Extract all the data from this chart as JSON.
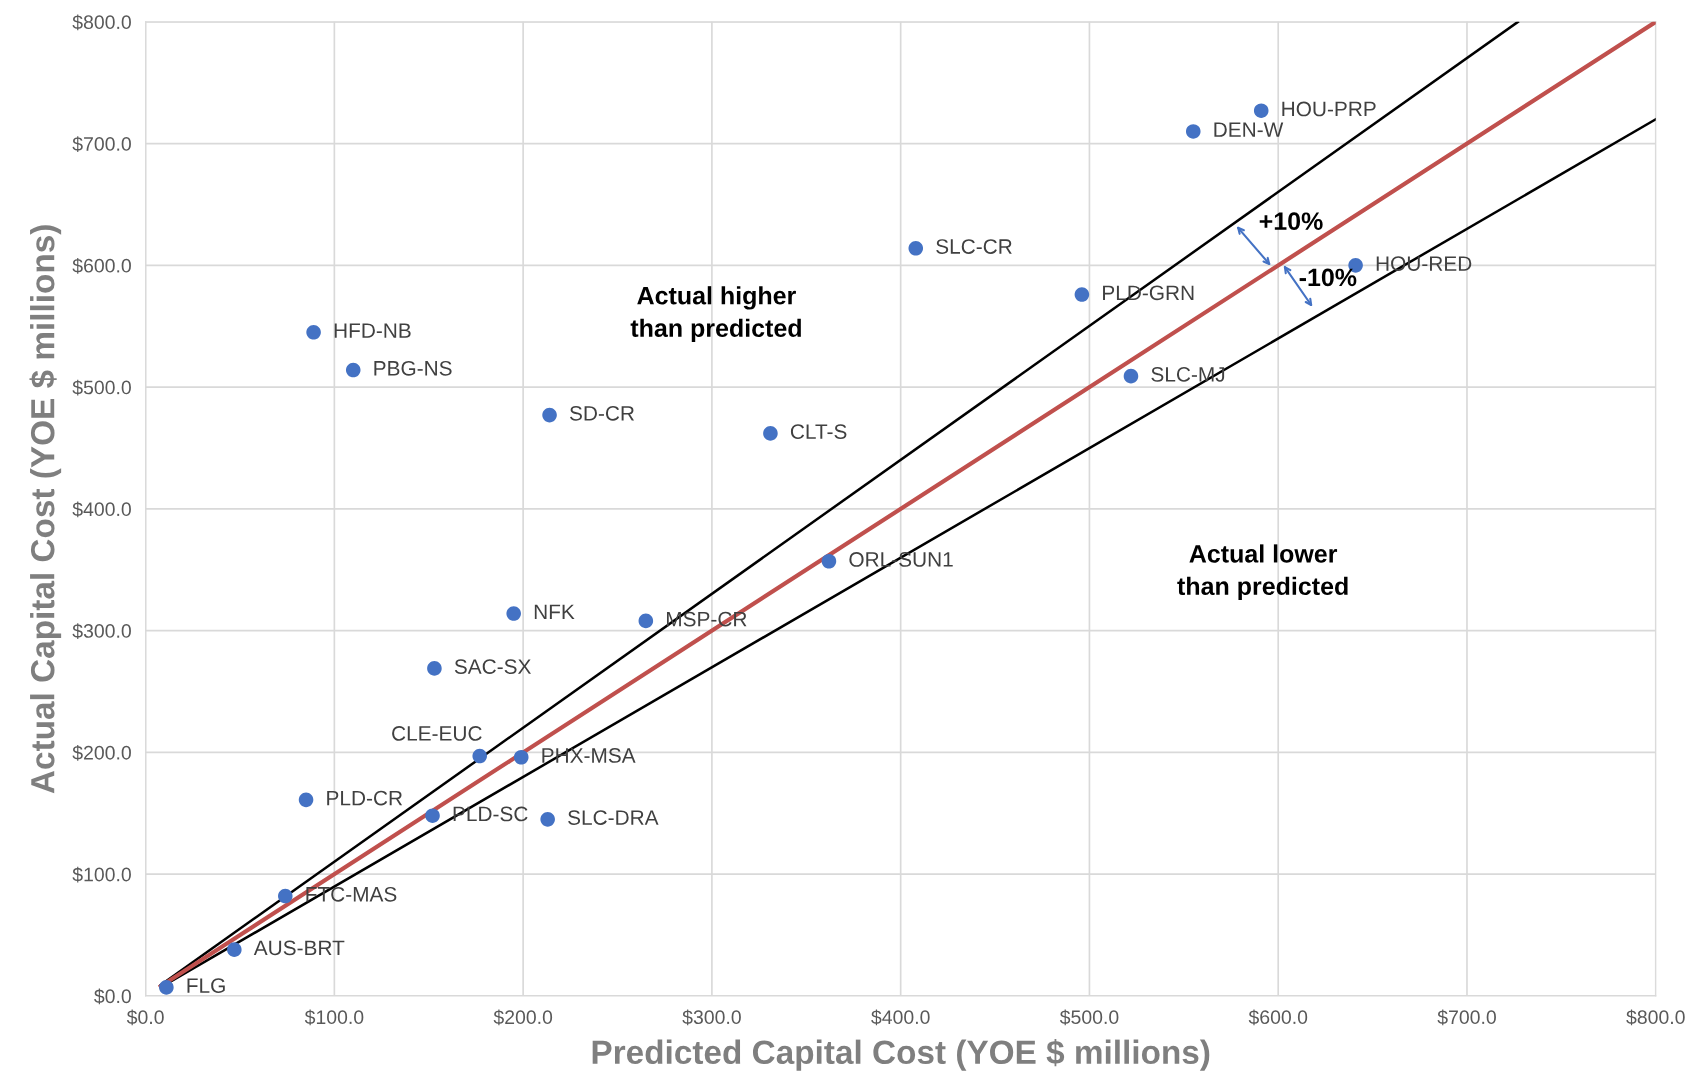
{
  "chart_data": {
    "type": "scatter",
    "xlabel": "Predicted Capital Cost (YOE $ millions)",
    "ylabel": "Actual Capital Cost (YOE $ millions)",
    "xlim": [
      0,
      800
    ],
    "ylim": [
      0,
      800
    ],
    "xticks": [
      {
        "value": 0,
        "label": "$0.0"
      },
      {
        "value": 100,
        "label": "$100.0"
      },
      {
        "value": 200,
        "label": "$200.0"
      },
      {
        "value": 300,
        "label": "$300.0"
      },
      {
        "value": 400,
        "label": "$400.0"
      },
      {
        "value": 500,
        "label": "$500.0"
      },
      {
        "value": 600,
        "label": "$600.0"
      },
      {
        "value": 700,
        "label": "$700.0"
      },
      {
        "value": 800,
        "label": "$800.0"
      }
    ],
    "yticks": [
      {
        "value": 0,
        "label": "$0.0"
      },
      {
        "value": 100,
        "label": "$100.0"
      },
      {
        "value": 200,
        "label": "$200.0"
      },
      {
        "value": 300,
        "label": "$300.0"
      },
      {
        "value": 400,
        "label": "$400.0"
      },
      {
        "value": 500,
        "label": "$500.0"
      },
      {
        "value": 600,
        "label": "$600.0"
      },
      {
        "value": 700,
        "label": "$700.0"
      },
      {
        "value": 800,
        "label": "$800.0"
      }
    ],
    "grid": true,
    "marker": "circle",
    "series": [
      {
        "type": "line",
        "marker": "none",
        "color": "#000000",
        "x": [
          8,
          727
        ],
        "values": [
          9,
          800
        ]
      },
      {
        "type": "line",
        "marker": "none",
        "color": "#000000",
        "x": [
          8,
          800
        ],
        "values": [
          7,
          720
        ]
      },
      {
        "type": "line",
        "marker": "none",
        "color": "#c0504d",
        "x": [
          8,
          800
        ],
        "values": [
          8,
          800
        ]
      },
      {
        "color": "#4472c4",
        "x": [
          11,
          47,
          74,
          85,
          152,
          213,
          177,
          199,
          153,
          195,
          265,
          362,
          331,
          214,
          110,
          89,
          408,
          496,
          522,
          641,
          555,
          591
        ],
        "values": [
          7,
          38,
          82,
          161,
          148,
          145,
          197,
          196,
          269,
          314,
          308,
          357,
          462,
          477,
          514,
          545,
          614,
          576,
          509,
          600,
          710,
          727
        ]
      }
    ],
    "annotations": [
      {
        "text": "FLG",
        "x": 11,
        "y": 7
      },
      {
        "text": "AUS-BRT",
        "x": 47,
        "y": 38
      },
      {
        "text": "FTC-MAS",
        "x": 74,
        "y": 82
      },
      {
        "text": "PLD-CR",
        "x": 85,
        "y": 161
      },
      {
        "text": "PLD-SC",
        "x": 152,
        "y": 148
      },
      {
        "text": "SLC-DRA",
        "x": 213,
        "y": 145
      },
      {
        "text": "CLE-EUC",
        "x": 177,
        "y": 197
      },
      {
        "text": "PHX-MSA",
        "x": 199,
        "y": 196
      },
      {
        "text": "SAC-SX",
        "x": 153,
        "y": 269
      },
      {
        "text": "NFK",
        "x": 195,
        "y": 314
      },
      {
        "text": "MSP-CR",
        "x": 265,
        "y": 308
      },
      {
        "text": "ORL-SUN1",
        "x": 362,
        "y": 357
      },
      {
        "text": "CLT-S",
        "x": 331,
        "y": 462
      },
      {
        "text": "SD-CR",
        "x": 214,
        "y": 477
      },
      {
        "text": "PBG-NS",
        "x": 110,
        "y": 514
      },
      {
        "text": "HFD-NB",
        "x": 89,
        "y": 545
      },
      {
        "text": "SLC-CR",
        "x": 408,
        "y": 614
      },
      {
        "text": "PLD-GRN",
        "x": 496,
        "y": 576
      },
      {
        "text": "SLC-MJ",
        "x": 522,
        "y": 509
      },
      {
        "text": "HOU-RED",
        "x": 641,
        "y": 600
      },
      {
        "text": "DEN-W",
        "x": 555,
        "y": 710
      },
      {
        "text": "HOU-PRP",
        "x": 591,
        "y": 727
      },
      "Actual higher\nthan predicted",
      "Actual lower\nthan predicted",
      {
        "text": "+10%",
        "x": 597,
        "y": 598
      },
      {
        "text": "-10%",
        "x": 602,
        "y": 602
      }
    ]
  }
}
